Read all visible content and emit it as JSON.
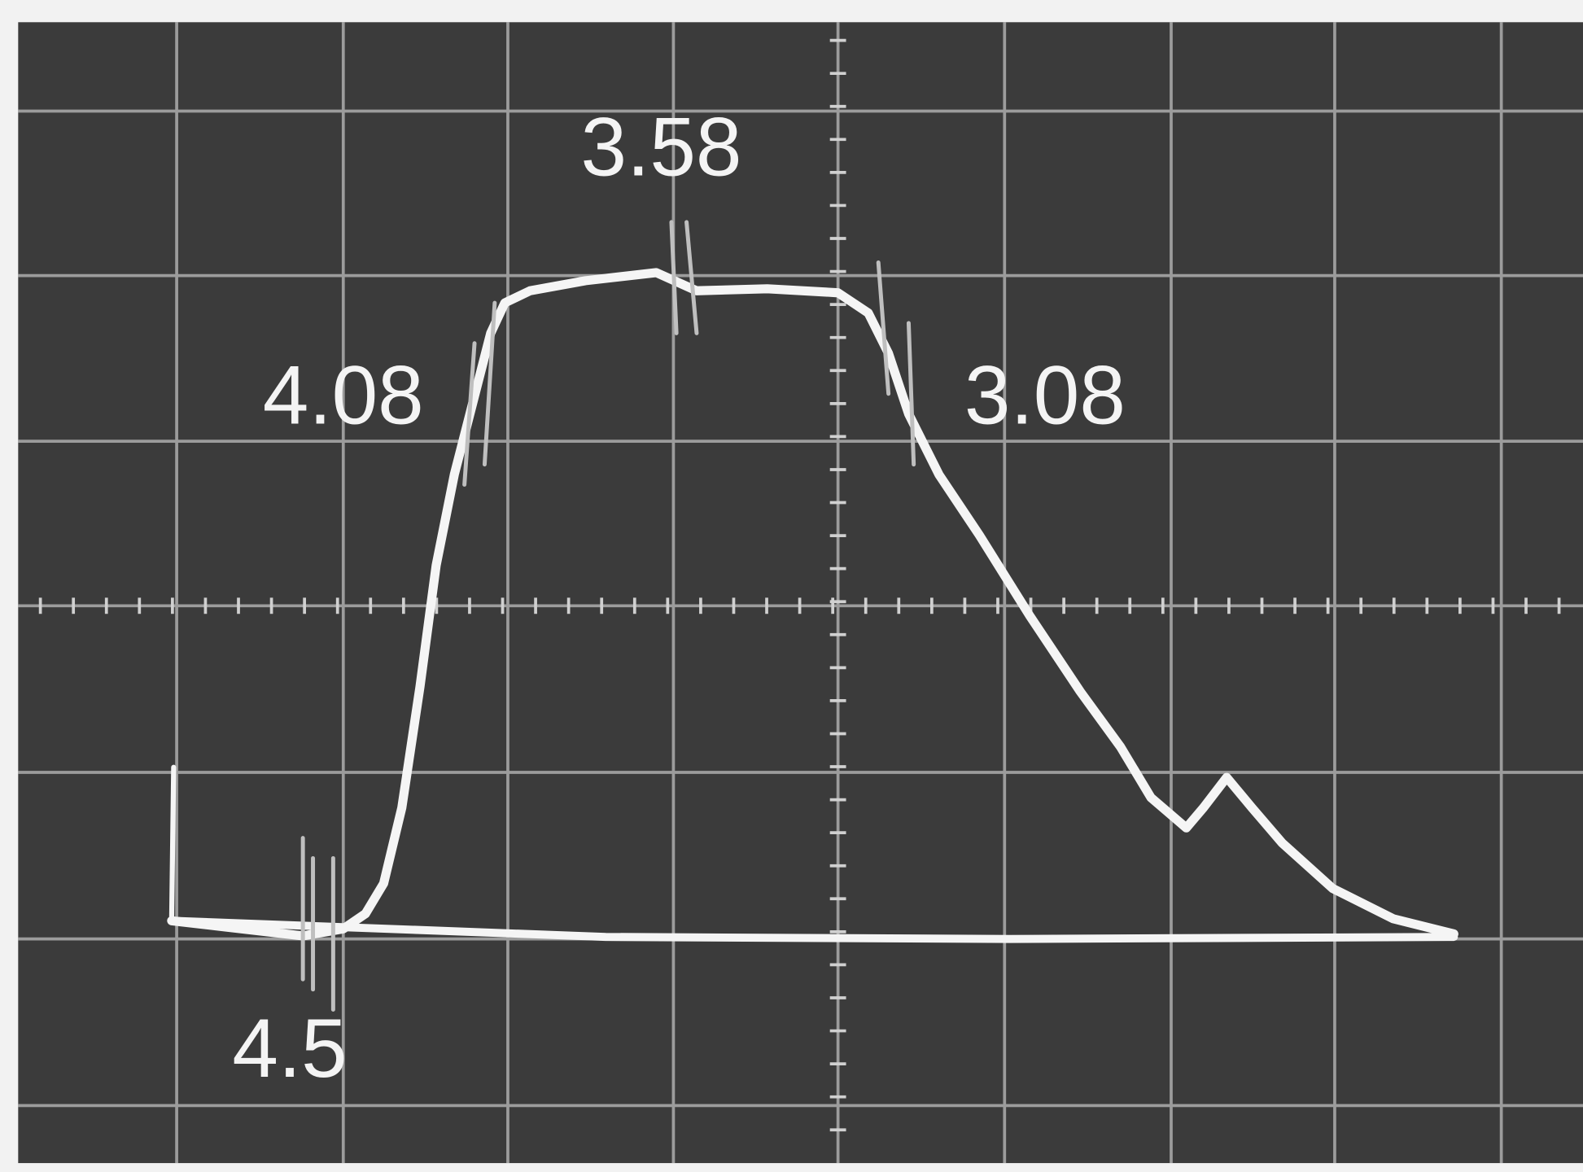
{
  "labels": {
    "top": "3.58",
    "left": "4.08",
    "right": "3.08",
    "bottom": "4.5"
  }
}
